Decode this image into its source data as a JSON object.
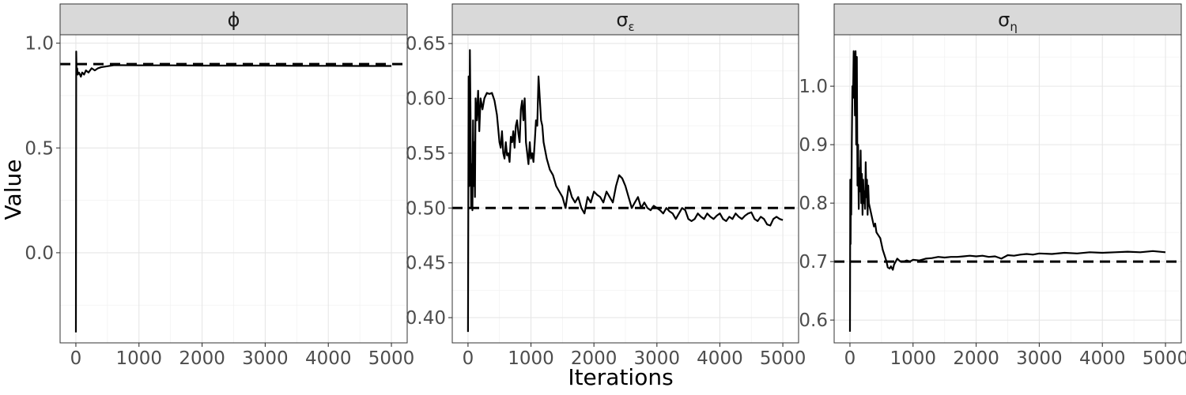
{
  "chart_data": {
    "type": "line",
    "xlabel": "Iterations",
    "ylabel": "Value",
    "grid": true,
    "legend": "none",
    "line_color": "#000000",
    "reference_line_style": "dashed",
    "strip_fill": "#d9d9d9",
    "panels": [
      {
        "strip": {
          "base": "ϕ",
          "sub": ""
        },
        "xlim": [
          -250,
          5250
        ],
        "ylim": [
          -0.43,
          1.04
        ],
        "x_ticks": [
          0,
          1000,
          2000,
          3000,
          4000,
          5000
        ],
        "x_tick_labels": [
          "0",
          "1000",
          "2000",
          "3000",
          "4000",
          "5000"
        ],
        "y_ticks": [
          0.0,
          0.5,
          1.0
        ],
        "y_tick_labels": [
          "0.0",
          "0.5",
          "1.0"
        ],
        "reference": 0.9,
        "series": [
          {
            "x": [
              0,
              5,
              10,
              20,
              30,
              50,
              80,
              100,
              130,
              160,
              200,
              250,
              300,
              350,
              400,
              500,
              600,
              700,
              1000,
              1500,
              2000,
              2500,
              3000,
              3500,
              4000,
              4500,
              5000
            ],
            "y": [
              -0.38,
              0.96,
              0.87,
              0.88,
              0.85,
              0.86,
              0.84,
              0.86,
              0.85,
              0.87,
              0.86,
              0.88,
              0.87,
              0.88,
              0.885,
              0.89,
              0.895,
              0.895,
              0.894,
              0.894,
              0.893,
              0.893,
              0.893,
              0.892,
              0.892,
              0.891,
              0.891
            ]
          }
        ]
      },
      {
        "strip": {
          "base": "σ",
          "sub": "ε"
        },
        "xlim": [
          -250,
          5250
        ],
        "ylim": [
          0.377,
          0.658
        ],
        "x_ticks": [
          0,
          1000,
          2000,
          3000,
          4000,
          5000
        ],
        "x_tick_labels": [
          "0",
          "1000",
          "2000",
          "3000",
          "4000",
          "5000"
        ],
        "y_ticks": [
          0.4,
          0.45,
          0.5,
          0.55,
          0.6,
          0.65
        ],
        "y_tick_labels": [
          "0.40",
          "0.45",
          "0.50",
          "0.55",
          "0.60",
          "0.65"
        ],
        "reference": 0.5,
        "series": [
          {
            "x": [
              0,
              10,
              20,
              30,
              40,
              50,
              60,
              70,
              80,
              90,
              100,
              110,
              120,
              140,
              160,
              180,
              200,
              230,
              260,
              300,
              340,
              380,
              420,
              460,
              500,
              520,
              540,
              560,
              580,
              600,
              620,
              640,
              660,
              680,
              700,
              720,
              740,
              760,
              780,
              800,
              820,
              840,
              860,
              880,
              900,
              920,
              940,
              960,
              980,
              1000,
              1020,
              1040,
              1060,
              1080,
              1100,
              1120,
              1140,
              1160,
              1180,
              1200,
              1250,
              1300,
              1350,
              1400,
              1450,
              1500,
              1550,
              1600,
              1650,
              1700,
              1750,
              1800,
              1850,
              1900,
              1950,
              2000,
              2050,
              2100,
              2150,
              2200,
              2250,
              2300,
              2350,
              2400,
              2450,
              2500,
              2550,
              2600,
              2650,
              2700,
              2750,
              2800,
              2850,
              2900,
              2950,
              3000,
              3050,
              3100,
              3150,
              3200,
              3250,
              3300,
              3350,
              3400,
              3450,
              3500,
              3550,
              3600,
              3650,
              3700,
              3750,
              3800,
              3850,
              3900,
              3950,
              4000,
              4050,
              4100,
              4150,
              4200,
              4250,
              4300,
              4350,
              4400,
              4450,
              4500,
              4550,
              4600,
              4650,
              4700,
              4750,
              4800,
              4850,
              4900,
              4950,
              5000
            ],
            "y": [
              0.387,
              0.62,
              0.52,
              0.644,
              0.585,
              0.5,
              0.54,
              0.498,
              0.58,
              0.52,
              0.56,
              0.51,
              0.6,
              0.58,
              0.607,
              0.57,
              0.6,
              0.59,
              0.6,
              0.605,
              0.604,
              0.605,
              0.598,
              0.585,
              0.56,
              0.555,
              0.57,
              0.55,
              0.545,
              0.56,
              0.548,
              0.55,
              0.542,
              0.565,
              0.56,
              0.57,
              0.555,
              0.575,
              0.58,
              0.568,
              0.56,
              0.59,
              0.598,
              0.58,
              0.6,
              0.56,
              0.55,
              0.54,
              0.56,
              0.545,
              0.55,
              0.542,
              0.56,
              0.58,
              0.575,
              0.62,
              0.6,
              0.58,
              0.575,
              0.56,
              0.545,
              0.535,
              0.53,
              0.52,
              0.515,
              0.51,
              0.5,
              0.52,
              0.51,
              0.505,
              0.51,
              0.5,
              0.495,
              0.51,
              0.505,
              0.515,
              0.512,
              0.51,
              0.505,
              0.515,
              0.51,
              0.505,
              0.52,
              0.53,
              0.527,
              0.52,
              0.51,
              0.5,
              0.505,
              0.51,
              0.5,
              0.505,
              0.5,
              0.498,
              0.502,
              0.5,
              0.498,
              0.495,
              0.5,
              0.497,
              0.495,
              0.49,
              0.495,
              0.5,
              0.498,
              0.49,
              0.488,
              0.49,
              0.495,
              0.492,
              0.49,
              0.495,
              0.492,
              0.49,
              0.493,
              0.495,
              0.49,
              0.488,
              0.492,
              0.49,
              0.495,
              0.492,
              0.49,
              0.493,
              0.495,
              0.496,
              0.49,
              0.488,
              0.492,
              0.49,
              0.485,
              0.484,
              0.49,
              0.492,
              0.49,
              0.489
            ]
          }
        ]
      },
      {
        "strip": {
          "base": "σ",
          "sub": "η"
        },
        "xlim": [
          -250,
          5250
        ],
        "ylim": [
          0.561,
          1.088
        ],
        "x_ticks": [
          0,
          1000,
          2000,
          3000,
          4000,
          5000
        ],
        "x_tick_labels": [
          "0",
          "1000",
          "2000",
          "3000",
          "4000",
          "5000"
        ],
        "y_ticks": [
          0.6,
          0.7,
          0.8,
          0.9,
          1.0
        ],
        "y_tick_labels": [
          "0.6",
          "0.7",
          "0.8",
          "0.9",
          "1.0"
        ],
        "reference": 0.7,
        "series": [
          {
            "x": [
              0,
              5,
              10,
              15,
              20,
              30,
              40,
              50,
              60,
              70,
              80,
              90,
              100,
              110,
              120,
              130,
              140,
              150,
              160,
              170,
              180,
              190,
              200,
              210,
              220,
              230,
              240,
              250,
              260,
              270,
              280,
              290,
              300,
              320,
              340,
              360,
              380,
              400,
              420,
              450,
              480,
              500,
              520,
              550,
              580,
              600,
              630,
              650,
              680,
              700,
              750,
              800,
              850,
              900,
              950,
              1000,
              1100,
              1200,
              1300,
              1400,
              1500,
              1600,
              1700,
              1800,
              1900,
              2000,
              2100,
              2200,
              2300,
              2400,
              2500,
              2600,
              2700,
              2800,
              2900,
              3000,
              3200,
              3400,
              3600,
              3800,
              4000,
              4200,
              4400,
              4600,
              4800,
              5000
            ],
            "y": [
              0.58,
              0.84,
              0.73,
              0.83,
              0.78,
              0.9,
              1.0,
              0.98,
              1.06,
              1.04,
              0.95,
              1.06,
              0.9,
              1.05,
              0.83,
              0.9,
              0.79,
              0.86,
              0.82,
              0.89,
              0.8,
              0.85,
              0.78,
              0.84,
              0.8,
              0.82,
              0.79,
              0.87,
              0.81,
              0.84,
              0.78,
              0.83,
              0.8,
              0.79,
              0.78,
              0.77,
              0.76,
              0.765,
              0.75,
              0.745,
              0.74,
              0.73,
              0.72,
              0.71,
              0.7,
              0.69,
              0.688,
              0.692,
              0.686,
              0.695,
              0.705,
              0.7,
              0.7,
              0.702,
              0.7,
              0.703,
              0.702,
              0.705,
              0.706,
              0.708,
              0.707,
              0.708,
              0.708,
              0.709,
              0.71,
              0.709,
              0.71,
              0.708,
              0.709,
              0.705,
              0.711,
              0.71,
              0.712,
              0.713,
              0.712,
              0.714,
              0.713,
              0.715,
              0.714,
              0.716,
              0.715,
              0.716,
              0.717,
              0.716,
              0.718,
              0.716
            ]
          }
        ]
      }
    ]
  }
}
